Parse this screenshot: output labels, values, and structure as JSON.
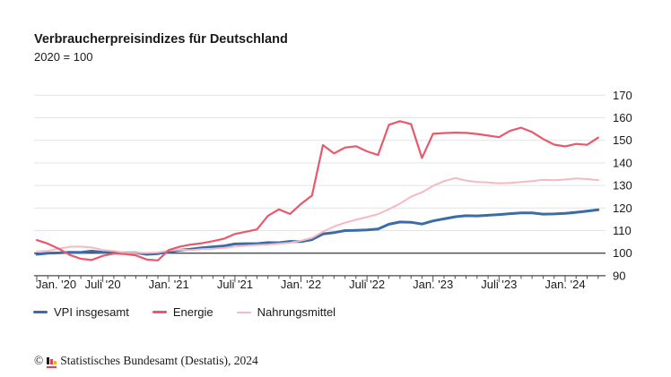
{
  "header": {
    "title": "Verbraucherpreisindizes für Deutschland",
    "subtitle": "2020 = 100"
  },
  "footer": {
    "copyright_symbol": "©",
    "source_text": "Statistisches Bundesamt (Destatis), 2024",
    "logo_icon_colors": {
      "bar1": "#1a1a1a",
      "bar2": "#e8414b",
      "bar3": "#f0b323",
      "baseline": "#e8414b"
    }
  },
  "colors": {
    "vpi_blue": "#3a6ca8",
    "energie_red": "#e8596b",
    "nahrungsmittel_pink": "#f6b8c2",
    "grid": "#e4e4e4",
    "axis": "#4a4a4a",
    "text": "#1a1a1a"
  },
  "chart_data": {
    "type": "line",
    "title": "Verbraucherpreisindizes für Deutschland",
    "subtitle": "2020 = 100",
    "grid": true,
    "legend_position": "bottom-left",
    "x_range": {
      "start": "Jan. 2020",
      "end": "Apr. 2024",
      "frequency": "monthly",
      "n_points": 52
    },
    "x_tick_labels": [
      {
        "label": "Jan. '20",
        "month_index": 0
      },
      {
        "label": "Juli '20",
        "month_index": 6
      },
      {
        "label": "Jan. '21",
        "month_index": 12
      },
      {
        "label": "Juli '21",
        "month_index": 18
      },
      {
        "label": "Jan. '22",
        "month_index": 24
      },
      {
        "label": "Juli '22",
        "month_index": 30
      },
      {
        "label": "Jan. '23",
        "month_index": 36
      },
      {
        "label": "Juli '23",
        "month_index": 42
      },
      {
        "label": "Jan. '24",
        "month_index": 48
      }
    ],
    "y_axis": {
      "min": 90,
      "max": 170,
      "step": 10,
      "reference_line": 100,
      "labels_side": "right"
    },
    "series": [
      {
        "name": "VPI insgesamt",
        "color": "#3a6ca8",
        "values": [
          99.5,
          100.0,
          100.1,
          100.4,
          100.3,
          100.9,
          100.4,
          100.3,
          100.1,
          100.2,
          99.5,
          99.8,
          100.5,
          101.3,
          101.8,
          102.4,
          102.8,
          103.2,
          104.1,
          104.2,
          104.2,
          104.7,
          104.6,
          105.2,
          105.1,
          106.0,
          108.5,
          109.1,
          110.0,
          110.1,
          110.3,
          110.7,
          112.8,
          113.8,
          113.7,
          112.9,
          114.3,
          115.2,
          116.1,
          116.6,
          116.5,
          116.8,
          117.1,
          117.5,
          117.8,
          117.8,
          117.3,
          117.4,
          117.6,
          118.1,
          118.6,
          119.2
        ]
      },
      {
        "name": "Energie",
        "color": "#e8596b",
        "values": [
          105.8,
          104.2,
          102.0,
          99.2,
          97.5,
          97.0,
          98.8,
          99.8,
          99.6,
          99.0,
          97.2,
          96.8,
          101.4,
          102.9,
          103.8,
          104.4,
          105.3,
          106.4,
          108.5,
          109.5,
          110.5,
          116.5,
          119.4,
          117.4,
          121.8,
          125.5,
          147.9,
          144.2,
          146.8,
          147.4,
          145.1,
          143.5,
          156.9,
          158.5,
          157.2,
          142.2,
          152.9,
          153.2,
          153.4,
          153.3,
          152.8,
          152.1,
          151.4,
          154.2,
          155.6,
          153.7,
          150.6,
          148.1,
          147.3,
          148.4,
          148.0,
          151.2
        ]
      },
      {
        "name": "Nahrungsmittel",
        "color": "#f6b8c2",
        "values": [
          100.8,
          101.0,
          102.0,
          102.8,
          102.9,
          102.5,
          101.4,
          101.0,
          100.2,
          100.2,
          100.1,
          100.3,
          101.2,
          101.5,
          101.3,
          101.8,
          102.0,
          102.3,
          102.9,
          103.3,
          103.6,
          103.8,
          104.2,
          104.6,
          105.5,
          106.8,
          109.5,
          111.8,
          113.5,
          114.8,
          116.0,
          117.3,
          119.5,
          122.0,
          125.0,
          127.0,
          129.8,
          131.9,
          133.3,
          132.2,
          131.5,
          131.3,
          130.9,
          131.1,
          131.5,
          131.9,
          132.5,
          132.3,
          132.6,
          133.1,
          132.8,
          132.4
        ]
      }
    ]
  }
}
